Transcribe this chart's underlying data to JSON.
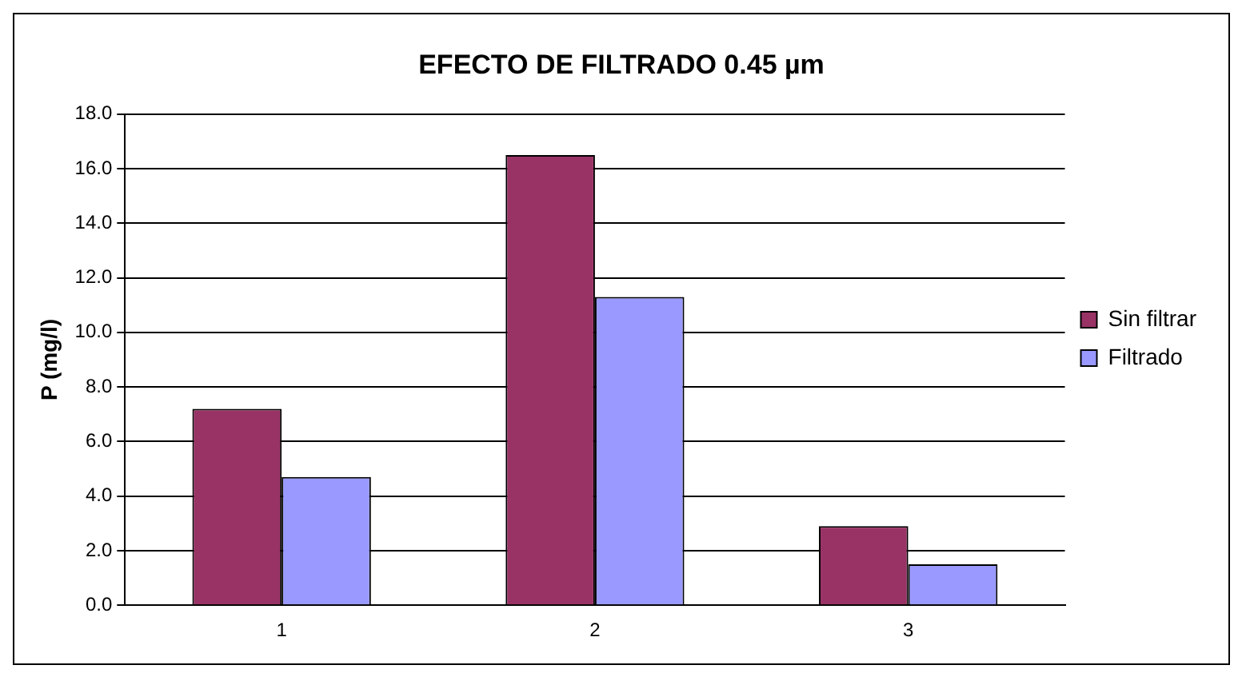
{
  "chart_data": {
    "type": "bar",
    "title": "EFECTO DE FILTRADO 0.45 µm",
    "ylabel": "P (mg/l)",
    "categories": [
      "1",
      "2",
      "3"
    ],
    "series": [
      {
        "name": "Sin filtrar",
        "color": "#993366",
        "values": [
          7.2,
          16.5,
          2.9
        ]
      },
      {
        "name": "Filtrado",
        "color": "#9999ff",
        "values": [
          4.7,
          11.3,
          1.5
        ]
      }
    ],
    "ylim": [
      0,
      18
    ],
    "yticks": [
      {
        "value": 0,
        "label": "0.0"
      },
      {
        "value": 2,
        "label": "2.0"
      },
      {
        "value": 4,
        "label": "4.0"
      },
      {
        "value": 6,
        "label": "6.0"
      },
      {
        "value": 8,
        "label": "8.0"
      },
      {
        "value": 10,
        "label": "10.0"
      },
      {
        "value": 12,
        "label": "12.0"
      },
      {
        "value": 14,
        "label": "14.0"
      },
      {
        "value": 16,
        "label": "16.0"
      },
      {
        "value": 18,
        "label": "18.0"
      }
    ],
    "grid": "y",
    "legend": "right"
  }
}
